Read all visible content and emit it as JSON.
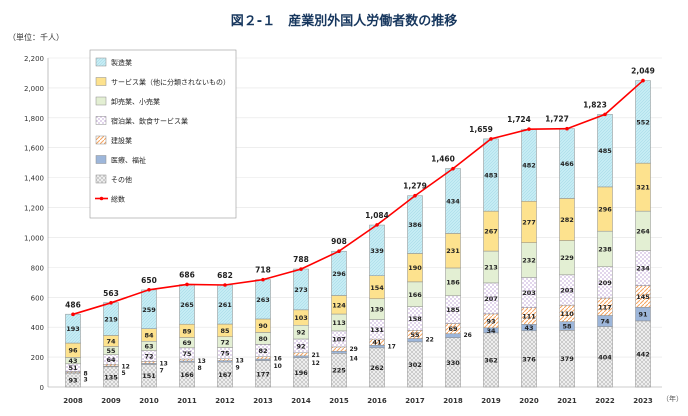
{
  "chart_data": {
    "type": "bar",
    "stacked": true,
    "title": "図２-１　産業別外国人労働者数の推移",
    "ylabel": "（単位：千人）",
    "xlabel": "（年）",
    "ylim": [
      0,
      2200
    ],
    "yticks": [
      "0",
      "200",
      "400",
      "600",
      "800",
      "1,000",
      "1,200",
      "1,400",
      "1,600",
      "1,800",
      "2,000",
      "2,200"
    ],
    "grid": true,
    "legend_position": "top-left",
    "categories": [
      "2008",
      "2009",
      "2010",
      "2011",
      "2012",
      "2013",
      "2014",
      "2015",
      "2016",
      "2017",
      "2018",
      "2019",
      "2020",
      "2021",
      "2022",
      "2023"
    ],
    "series": [
      {
        "name": "その他",
        "color": "#e6e6e6",
        "values": [
          93,
          135,
          151,
          166,
          167,
          177,
          196,
          225,
          262,
          302,
          330,
          362,
          376,
          379,
          404,
          442
        ]
      },
      {
        "name": "医療、福祉",
        "color": "#9db6da",
        "values": [
          3,
          5,
          7,
          8,
          9,
          10,
          12,
          14,
          17,
          22,
          26,
          34,
          43,
          58,
          74,
          91
        ]
      },
      {
        "name": "建設業",
        "color": "#fbe3cf",
        "values": [
          8,
          12,
          13,
          13,
          13,
          16,
          21,
          29,
          41,
          55,
          69,
          93,
          111,
          110,
          117,
          145
        ]
      },
      {
        "name": "宿泊業、飲食サービス業",
        "color": "#f4eef8",
        "values": [
          51,
          64,
          72,
          75,
          75,
          82,
          92,
          107,
          131,
          158,
          185,
          207,
          203,
          203,
          209,
          234
        ]
      },
      {
        "name": "卸売業、小売業",
        "color": "#e3efd3",
        "values": [
          43,
          55,
          63,
          69,
          72,
          80,
          92,
          113,
          139,
          166,
          186,
          213,
          232,
          229,
          238,
          264
        ]
      },
      {
        "name": "サービス業（他に分類されないもの）",
        "color": "#fde28e",
        "values": [
          96,
          74,
          84,
          89,
          85,
          90,
          103,
          124,
          154,
          190,
          231,
          267,
          277,
          282,
          296,
          321
        ]
      },
      {
        "name": "製造業",
        "color": "#c6ecf4",
        "values": [
          193,
          219,
          259,
          265,
          261,
          263,
          273,
          296,
          339,
          386,
          434,
          483,
          482,
          466,
          485,
          552
        ]
      }
    ],
    "total": {
      "name": "総数",
      "color": "#ff0000",
      "values": [
        486,
        563,
        650,
        686,
        682,
        718,
        788,
        908,
        1084,
        1279,
        1460,
        1659,
        1724,
        1727,
        1823,
        2049
      ],
      "labels": [
        "486",
        "563",
        "650",
        "686",
        "682",
        "718",
        "788",
        "908",
        "1,084",
        "1,279",
        "1,460",
        "1,659",
        "1,724",
        "1,727",
        "1,823",
        "2,049"
      ]
    }
  }
}
